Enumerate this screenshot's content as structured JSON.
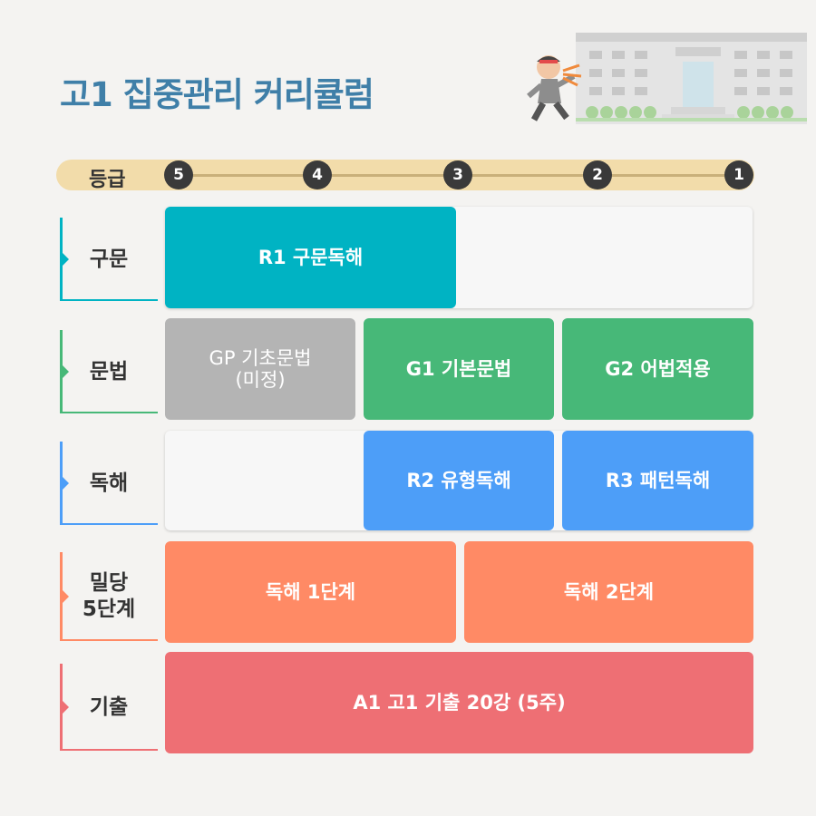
{
  "title": "고1 집중관리 커리큘럼",
  "grade": {
    "label": "등급",
    "steps": [
      "5",
      "4",
      "3",
      "2",
      "1"
    ]
  },
  "colors": {
    "title": "#3f7fa8",
    "syntax": "#00b3c3",
    "grammar_green": "#47b878",
    "grammar_gray": "#b4b4b4",
    "reading": "#4d9ef8",
    "mildang": "#ff8a65",
    "exam": "#ee6f74"
  },
  "rows": {
    "syntax": {
      "label": "구문",
      "blocks": [
        "R1 구문독해"
      ]
    },
    "grammar": {
      "label": "문법",
      "blocks": [
        "GP 기초문법",
        "(미정)",
        "G1 기본문법",
        "G2 어법적용"
      ]
    },
    "reading": {
      "label": "독해",
      "blocks": [
        "R2 유형독해",
        "R3 패턴독해"
      ]
    },
    "mildang": {
      "label": "밀당\n5단계",
      "blocks": [
        "독해 1단계",
        "독해 2단계"
      ]
    },
    "exam": {
      "label": "기출",
      "blocks": [
        "A1 고1 기출 20강 (5주)"
      ]
    }
  }
}
